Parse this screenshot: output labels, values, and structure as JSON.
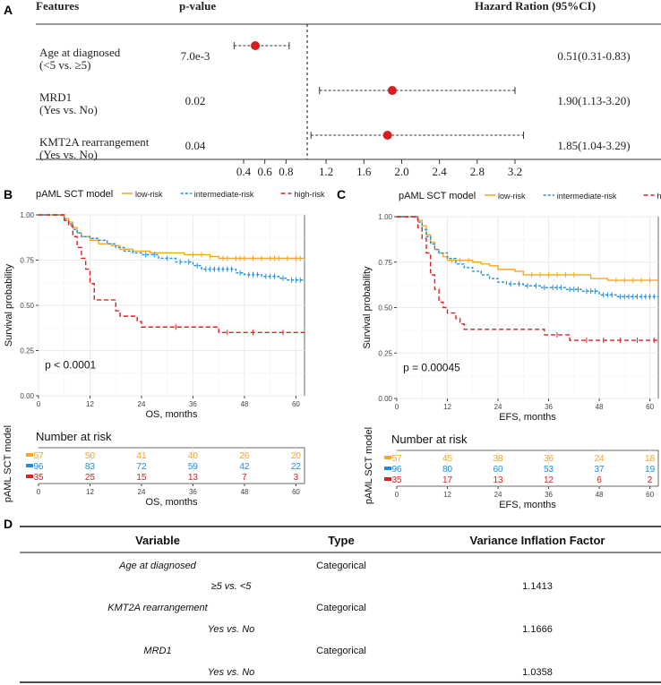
{
  "colors": {
    "low": "#F5A623",
    "intermediate": "#1F8FD6",
    "high": "#E02020",
    "dot": "#D61E1E",
    "text": "#222222",
    "grid": "#EBEBEB",
    "rule": "#333333"
  },
  "panels": {
    "a": "A",
    "b": "B",
    "c": "C",
    "d": "D"
  },
  "chart_data": [
    {
      "panel": "A",
      "type": "forest",
      "headers": {
        "features": "Features",
        "pvalue": "p-value",
        "hr": "Hazard Ration (95%CI)"
      },
      "rows": [
        {
          "label1": "Age at diagnosed",
          "label2": "(<5 vs. ≥5)",
          "p": "7.0e-3",
          "hr": 0.51,
          "lo": 0.31,
          "hi": 0.83,
          "text": "0.51(0.31-0.83)"
        },
        {
          "label1": "MRD1",
          "label2": " (Yes vs. No)",
          "p": "0.02",
          "hr": 1.9,
          "lo": 1.13,
          "hi": 3.2,
          "text": "1.90(1.13-3.20)"
        },
        {
          "label1": "KMT2A rearrangement",
          "label2": "(Yes vs. No)",
          "p": "0.04",
          "hr": 1.85,
          "lo": 1.04,
          "hi": 3.29,
          "text": "1.85(1.04-3.29)"
        }
      ],
      "ref_line": 1.0,
      "xticks_left": [
        "0.4",
        "0.6",
        "0.8"
      ],
      "xticks_left_v": [
        0.4,
        0.6,
        0.8
      ],
      "xticks_right": [
        "1.2",
        "1.6",
        "2.0",
        "2.4",
        "2.8",
        "3.2"
      ],
      "xticks_right_v": [
        1.2,
        1.6,
        2.0,
        2.4,
        2.8,
        3.2
      ]
    },
    {
      "panel": "B",
      "type": "km",
      "legend_title": "pAML SCT model",
      "legend": [
        "low-risk",
        "intermediate-risk",
        "high-risk"
      ],
      "xlabel": "OS, months",
      "ylabel": "Survival probability",
      "pvalue": "p < 0.0001",
      "xlim": [
        0,
        62
      ],
      "ylim": [
        0,
        1
      ],
      "xticks": [
        "0",
        "12",
        "24",
        "36",
        "48",
        "60"
      ],
      "xticks_v": [
        0,
        12,
        24,
        36,
        48,
        60
      ],
      "yticks": [
        "0.00",
        "0.25",
        "0.50",
        "0.75",
        "1.00"
      ],
      "yticks_v": [
        0,
        0.25,
        0.5,
        0.75,
        1.0
      ],
      "series": [
        {
          "name": "low-risk",
          "points": [
            [
              0,
              1
            ],
            [
              5,
              1
            ],
            [
              6,
              0.98
            ],
            [
              7,
              0.96
            ],
            [
              8,
              0.93
            ],
            [
              9,
              0.9
            ],
            [
              10,
              0.88
            ],
            [
              12,
              0.86
            ],
            [
              14,
              0.84
            ],
            [
              17,
              0.83
            ],
            [
              19,
              0.81
            ],
            [
              22,
              0.8
            ],
            [
              26,
              0.79
            ],
            [
              30,
              0.79
            ],
            [
              34,
              0.78
            ],
            [
              40,
              0.77
            ],
            [
              42,
              0.76
            ],
            [
              62,
              0.76
            ]
          ],
          "censor": [
            36,
            38,
            40,
            43,
            44,
            46,
            47,
            48,
            50,
            52,
            54,
            55,
            56,
            58,
            60,
            61
          ]
        },
        {
          "name": "intermediate-risk",
          "points": [
            [
              0,
              1
            ],
            [
              5,
              1
            ],
            [
              6,
              0.97
            ],
            [
              7,
              0.95
            ],
            [
              8,
              0.92
            ],
            [
              9,
              0.9
            ],
            [
              10,
              0.88
            ],
            [
              12,
              0.87
            ],
            [
              14,
              0.86
            ],
            [
              16,
              0.84
            ],
            [
              18,
              0.82
            ],
            [
              20,
              0.8
            ],
            [
              22,
              0.79
            ],
            [
              24,
              0.78
            ],
            [
              28,
              0.76
            ],
            [
              32,
              0.74
            ],
            [
              36,
              0.72
            ],
            [
              38,
              0.7
            ],
            [
              44,
              0.7
            ],
            [
              46,
              0.68
            ],
            [
              48,
              0.67
            ],
            [
              52,
              0.66
            ],
            [
              56,
              0.65
            ],
            [
              58,
              0.64
            ],
            [
              62,
              0.64
            ]
          ],
          "censor": [
            25,
            27,
            30,
            33,
            35,
            37,
            39,
            40,
            41,
            42,
            43,
            44,
            45,
            47,
            49,
            50,
            51,
            53,
            54,
            55,
            57,
            59,
            60,
            61
          ]
        },
        {
          "name": "high-risk",
          "points": [
            [
              0,
              1
            ],
            [
              5,
              1
            ],
            [
              6,
              0.97
            ],
            [
              7,
              0.94
            ],
            [
              8,
              0.88
            ],
            [
              9,
              0.82
            ],
            [
              10,
              0.76
            ],
            [
              11,
              0.7
            ],
            [
              12,
              0.62
            ],
            [
              13,
              0.53
            ],
            [
              17,
              0.53
            ],
            [
              18,
              0.47
            ],
            [
              19,
              0.44
            ],
            [
              22,
              0.44
            ],
            [
              23,
              0.41
            ],
            [
              24,
              0.38
            ],
            [
              41,
              0.38
            ],
            [
              42,
              0.35
            ],
            [
              62,
              0.35
            ]
          ],
          "censor": [
            32,
            44,
            50,
            57
          ]
        }
      ],
      "risk_table": {
        "title": "Number at risk",
        "ylabel": "pAML SCT model",
        "times": [
          "0",
          "12",
          "24",
          "36",
          "48",
          "60"
        ],
        "rows": [
          [
            "57",
            "50",
            "41",
            "40",
            "26",
            "20"
          ],
          [
            "96",
            "83",
            "72",
            "59",
            "42",
            "22"
          ],
          [
            "35",
            "25",
            "15",
            "13",
            "7",
            "3"
          ]
        ]
      }
    },
    {
      "panel": "C",
      "type": "km",
      "legend_title": "pAML SCT model",
      "legend": [
        "low-risk",
        "intermediate-risk",
        "high-risk"
      ],
      "xlabel": "EFS, months",
      "ylabel": "Survival probability",
      "pvalue": "p = 0.00045",
      "xlim": [
        0,
        62
      ],
      "ylim": [
        0,
        1
      ],
      "xticks": [
        "0",
        "12",
        "24",
        "36",
        "48",
        "60"
      ],
      "xticks_v": [
        0,
        12,
        24,
        36,
        48,
        60
      ],
      "yticks": [
        "0.00",
        "0.25",
        "0.50",
        "0.75",
        "1.00"
      ],
      "yticks_v": [
        0,
        0.25,
        0.5,
        0.75,
        1.0
      ],
      "series": [
        {
          "name": "low-risk",
          "points": [
            [
              0,
              1
            ],
            [
              4,
              1
            ],
            [
              5,
              0.98
            ],
            [
              6,
              0.95
            ],
            [
              7,
              0.9
            ],
            [
              8,
              0.86
            ],
            [
              9,
              0.82
            ],
            [
              10,
              0.8
            ],
            [
              11,
              0.78
            ],
            [
              12,
              0.76
            ],
            [
              18,
              0.75
            ],
            [
              20,
              0.74
            ],
            [
              22,
              0.73
            ],
            [
              24,
              0.71
            ],
            [
              28,
              0.7
            ],
            [
              30,
              0.68
            ],
            [
              44,
              0.68
            ],
            [
              46,
              0.66
            ],
            [
              50,
              0.65
            ],
            [
              62,
              0.65
            ]
          ],
          "censor": [
            13,
            15,
            17,
            32,
            34,
            36,
            38,
            40,
            42,
            52,
            54,
            56,
            58,
            60
          ]
        },
        {
          "name": "intermediate-risk",
          "points": [
            [
              0,
              1
            ],
            [
              4,
              1
            ],
            [
              5,
              0.97
            ],
            [
              6,
              0.93
            ],
            [
              7,
              0.89
            ],
            [
              8,
              0.85
            ],
            [
              9,
              0.82
            ],
            [
              10,
              0.8
            ],
            [
              12,
              0.77
            ],
            [
              14,
              0.74
            ],
            [
              16,
              0.72
            ],
            [
              18,
              0.7
            ],
            [
              20,
              0.68
            ],
            [
              22,
              0.66
            ],
            [
              24,
              0.64
            ],
            [
              26,
              0.63
            ],
            [
              30,
              0.62
            ],
            [
              34,
              0.61
            ],
            [
              40,
              0.6
            ],
            [
              44,
              0.59
            ],
            [
              48,
              0.57
            ],
            [
              52,
              0.56
            ],
            [
              62,
              0.56
            ]
          ],
          "censor": [
            27,
            29,
            31,
            33,
            35,
            37,
            38,
            39,
            41,
            42,
            43,
            45,
            46,
            47,
            49,
            50,
            51,
            53,
            54,
            55,
            56,
            57,
            58,
            59,
            60,
            61
          ]
        },
        {
          "name": "high-risk",
          "points": [
            [
              0,
              1
            ],
            [
              4,
              1
            ],
            [
              5,
              0.94
            ],
            [
              6,
              0.88
            ],
            [
              7,
              0.8
            ],
            [
              8,
              0.68
            ],
            [
              9,
              0.6
            ],
            [
              10,
              0.53
            ],
            [
              11,
              0.5
            ],
            [
              12,
              0.47
            ],
            [
              14,
              0.44
            ],
            [
              15,
              0.41
            ],
            [
              16,
              0.38
            ],
            [
              34,
              0.38
            ],
            [
              35,
              0.35
            ],
            [
              40,
              0.35
            ],
            [
              41,
              0.32
            ],
            [
              62,
              0.32
            ]
          ],
          "censor": [
            38,
            45,
            49,
            53,
            57,
            61
          ]
        }
      ],
      "risk_table": {
        "title": "Number at risk",
        "ylabel": "pAML SCT model",
        "times": [
          "0",
          "12",
          "24",
          "36",
          "48",
          "60"
        ],
        "rows": [
          [
            "57",
            "45",
            "38",
            "36",
            "24",
            "18"
          ],
          [
            "96",
            "80",
            "60",
            "53",
            "37",
            "19"
          ],
          [
            "35",
            "17",
            "13",
            "12",
            "6",
            "2"
          ]
        ]
      }
    },
    {
      "panel": "D",
      "type": "table",
      "headers": [
        "Variable",
        "Type",
        "Variance Inflation Factor"
      ],
      "rows": [
        {
          "variable": "Age at diagnosed",
          "type": "Categorical",
          "vif": ""
        },
        {
          "variable": "≥5 vs. <5",
          "type": "",
          "vif": "1.1413"
        },
        {
          "variable": "KMT2A rearrangement",
          "type": "Categorical",
          "vif": ""
        },
        {
          "variable": "Yes vs. No",
          "type": "",
          "vif": "1.1666"
        },
        {
          "variable": "MRD1",
          "type": "Categorical",
          "vif": ""
        },
        {
          "variable": "Yes vs. No",
          "type": "",
          "vif": "1.0358"
        }
      ]
    }
  ]
}
